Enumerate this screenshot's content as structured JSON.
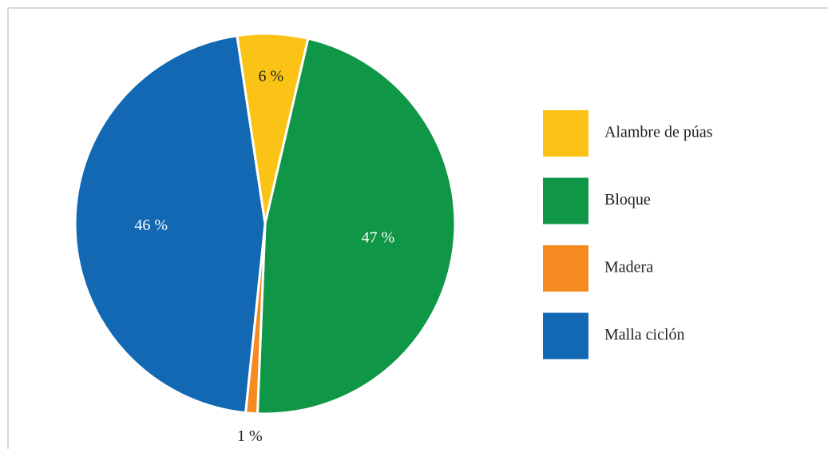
{
  "chart_data": {
    "type": "pie",
    "categories": [
      "Alambre de púas",
      "Bloque",
      "Madera",
      "Malla ciclón"
    ],
    "values": [
      6,
      47,
      1,
      46
    ],
    "value_labels": [
      "6 %",
      "47 %",
      "1 %",
      "46 %"
    ],
    "colors": [
      "#fbc316",
      "#0f9646",
      "#f58a20",
      "#1268b3"
    ],
    "legend": "right"
  }
}
